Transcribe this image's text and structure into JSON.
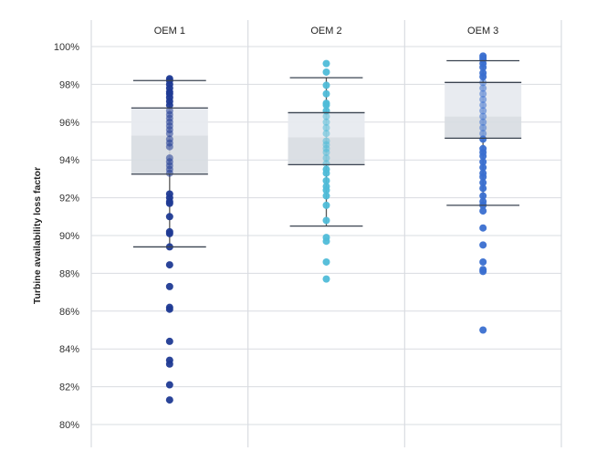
{
  "chart_data": {
    "type": "box",
    "title": "",
    "xlabel": "",
    "ylabel": "Turbine availability loss factor",
    "ylim": [
      80,
      100
    ],
    "yticks": [
      "100%",
      "98%",
      "96%",
      "94%",
      "92%",
      "90%",
      "88%",
      "86%",
      "84%",
      "82%",
      "80%"
    ],
    "ytick_values": [
      100,
      98,
      96,
      94,
      92,
      90,
      88,
      86,
      84,
      82,
      80
    ],
    "grid": true,
    "categories": [
      "OEM 1",
      "OEM 2",
      "OEM 3"
    ],
    "series": [
      {
        "name": "OEM 1",
        "color": "#1f3a93",
        "whisker_high": 98.2,
        "q3": 96.75,
        "median": 95.3,
        "q1": 93.25,
        "whisker_low": 89.4,
        "points": [
          98.3,
          98.2,
          98.0,
          97.8,
          97.6,
          97.5,
          97.3,
          97.1,
          96.9,
          96.6,
          96.4,
          96.2,
          96.0,
          95.8,
          95.6,
          95.4,
          95.1,
          94.9,
          94.7,
          94.1,
          93.9,
          93.7,
          93.5,
          93.3,
          92.2,
          92.0,
          91.8,
          91.7,
          91.0,
          90.2,
          90.1,
          89.4,
          88.45,
          87.3,
          86.2,
          86.1,
          84.4,
          83.4,
          83.2,
          82.1,
          81.3
        ]
      },
      {
        "name": "OEM 2",
        "color": "#4fbcd8",
        "whisker_high": 98.35,
        "q3": 96.5,
        "median": 95.2,
        "q1": 93.75,
        "whisker_low": 90.5,
        "points": [
          99.1,
          98.65,
          97.95,
          97.5,
          97.0,
          96.9,
          96.6,
          96.3,
          96.0,
          95.7,
          95.4,
          95.0,
          94.8,
          94.6,
          94.4,
          94.1,
          93.8,
          93.5,
          93.3,
          92.9,
          92.6,
          92.4,
          92.1,
          91.6,
          90.8,
          89.9,
          89.7,
          88.6,
          87.7
        ]
      },
      {
        "name": "OEM 3",
        "color": "#3a6fd0",
        "whisker_high": 99.25,
        "q3": 98.1,
        "median": 96.3,
        "q1": 95.15,
        "whisker_low": 91.6,
        "points": [
          99.5,
          99.4,
          99.3,
          99.1,
          98.9,
          98.6,
          98.4,
          98.1,
          97.8,
          97.5,
          97.2,
          96.9,
          96.6,
          96.3,
          96.0,
          95.7,
          95.4,
          95.1,
          94.6,
          94.4,
          94.2,
          93.9,
          93.6,
          93.3,
          93.1,
          92.8,
          92.5,
          92.1,
          91.8,
          91.6,
          91.3,
          90.4,
          89.5,
          88.6,
          88.2,
          88.1,
          85.0
        ]
      }
    ]
  }
}
